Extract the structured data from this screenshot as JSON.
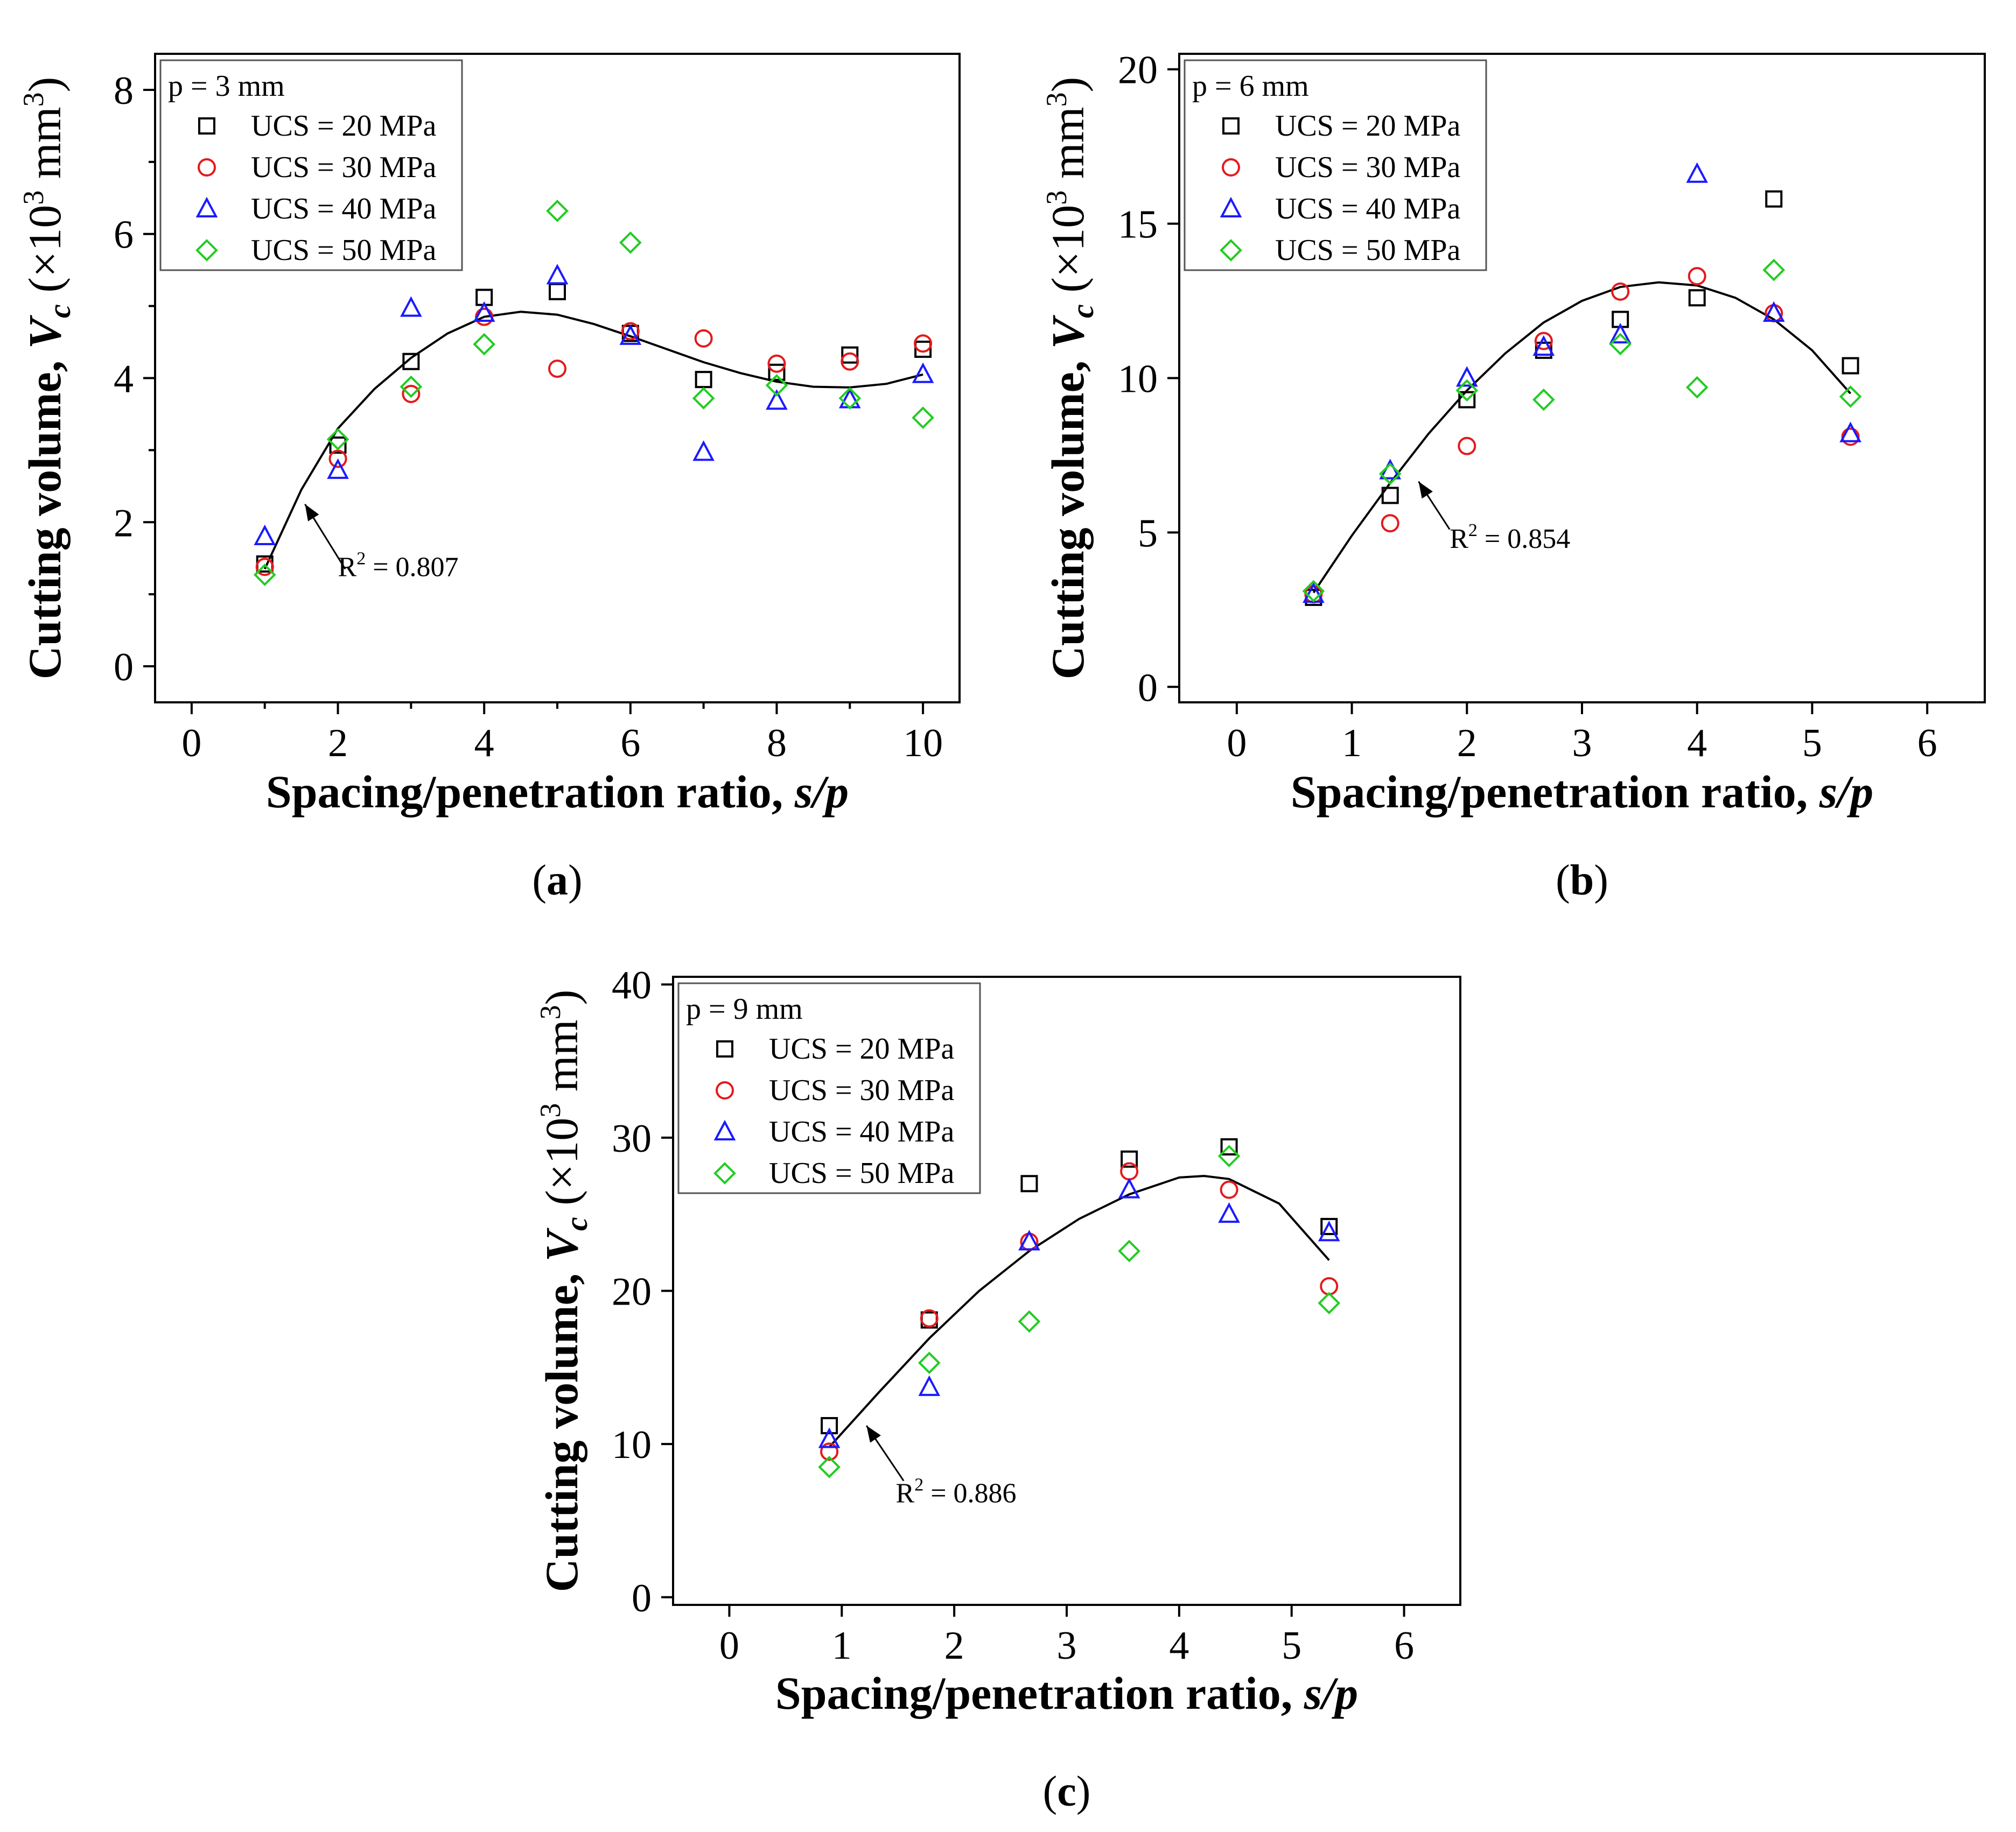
{
  "figure": {
    "subpanel_labels": [
      "(a)",
      "(b)",
      "(c)"
    ]
  },
  "colors": {
    "ucs20": "#000000",
    "ucs30": "#e41a1c",
    "ucs40": "#1a1aff",
    "ucs50": "#22cc22",
    "fit": "#000000",
    "axis": "#000000"
  },
  "chart_data": [
    {
      "id": "a",
      "type": "scatter",
      "panel_label": "a",
      "legend_title": "p = 3 mm",
      "xlabel": "Spacing/penetration ratio, ",
      "xlabel_italic": "s/p",
      "ylabel_text": "Cutting volume, ",
      "ylabel_var": "V",
      "ylabel_sub": "c",
      "ylabel_unit_pre": " (×10",
      "ylabel_exp": "3",
      "ylabel_unit_mid": " mm",
      "ylabel_unit_end": ")",
      "xlim": [
        -0.5,
        10.5
      ],
      "ylim": [
        -0.5,
        8.5
      ],
      "xticks": [
        0,
        2,
        4,
        6,
        8,
        10
      ],
      "xminor": [
        1,
        3,
        5,
        7,
        9
      ],
      "yticks": [
        0,
        2,
        4,
        6,
        8
      ],
      "yminor": [
        1,
        3,
        5,
        7
      ],
      "fit": {
        "r2_label": "R",
        "r2_exp": "2",
        "r2_value": " = 0.807",
        "points": [
          [
            1,
            1.35
          ],
          [
            1.5,
            2.45
          ],
          [
            2,
            3.3
          ],
          [
            2.5,
            3.85
          ],
          [
            3,
            4.28
          ],
          [
            3.5,
            4.62
          ],
          [
            4,
            4.85
          ],
          [
            4.5,
            4.92
          ],
          [
            5,
            4.88
          ],
          [
            5.5,
            4.75
          ],
          [
            6,
            4.58
          ],
          [
            6.5,
            4.4
          ],
          [
            7,
            4.22
          ],
          [
            7.5,
            4.07
          ],
          [
            8,
            3.95
          ],
          [
            8.5,
            3.88
          ],
          [
            9,
            3.87
          ],
          [
            9.5,
            3.92
          ],
          [
            10,
            4.05
          ]
        ],
        "arrow_from": [
          2.1,
          1.35
        ],
        "arrow_to": [
          1.55,
          2.25
        ],
        "label_at": [
          2.0,
          1.25
        ]
      },
      "series": [
        {
          "name": "UCS = 20 MPa",
          "marker": "square",
          "color": "#000000",
          "x": [
            1,
            2,
            3,
            4,
            5,
            6,
            7,
            8,
            9,
            10
          ],
          "y": [
            1.42,
            3.07,
            4.23,
            5.12,
            5.2,
            4.62,
            3.98,
            4.08,
            4.32,
            4.4
          ]
        },
        {
          "name": "UCS = 30 MPa",
          "marker": "circle",
          "color": "#e41a1c",
          "x": [
            1,
            2,
            3,
            4,
            5,
            6,
            7,
            8,
            9,
            10
          ],
          "y": [
            1.38,
            2.88,
            3.78,
            4.85,
            4.13,
            4.65,
            4.55,
            4.2,
            4.23,
            4.48
          ]
        },
        {
          "name": "UCS = 40 MPa",
          "marker": "triangle",
          "color": "#1a1aff",
          "x": [
            1,
            2,
            3,
            4,
            5,
            6,
            7,
            8,
            9,
            10
          ],
          "y": [
            1.8,
            2.72,
            4.97,
            4.9,
            5.42,
            4.58,
            2.97,
            3.68,
            3.7,
            4.05
          ]
        },
        {
          "name": "UCS = 50 MPa",
          "marker": "diamond",
          "color": "#22cc22",
          "x": [
            1,
            2,
            3,
            4,
            5,
            6,
            7,
            8,
            9,
            10
          ],
          "y": [
            1.27,
            3.15,
            3.88,
            4.47,
            6.32,
            5.88,
            3.72,
            3.9,
            3.72,
            3.45
          ]
        }
      ]
    },
    {
      "id": "b",
      "type": "scatter",
      "panel_label": "b",
      "legend_title": "p = 6 mm",
      "xlabel": "Spacing/penetration ratio, ",
      "xlabel_italic": "s/p",
      "ylabel_text": "Cutting volume, ",
      "ylabel_var": "V",
      "ylabel_sub": "c",
      "ylabel_unit_pre": " (×10",
      "ylabel_exp": "3",
      "ylabel_unit_mid": " mm",
      "ylabel_unit_end": ")",
      "xlim": [
        -0.5,
        6.5
      ],
      "ylim": [
        -0.5,
        20.5
      ],
      "xticks": [
        0,
        1,
        2,
        3,
        4,
        5,
        6
      ],
      "xminor": [],
      "yticks": [
        0,
        5,
        10,
        15,
        20
      ],
      "yminor": [],
      "fit": {
        "r2_label": "R",
        "r2_exp": "2",
        "r2_value": " = 0.854",
        "points": [
          [
            0.667,
            3.05
          ],
          [
            1.0,
            4.9
          ],
          [
            1.333,
            6.6
          ],
          [
            1.667,
            8.2
          ],
          [
            2.0,
            9.6
          ],
          [
            2.333,
            10.8
          ],
          [
            2.667,
            11.8
          ],
          [
            3.0,
            12.5
          ],
          [
            3.333,
            12.95
          ],
          [
            3.667,
            13.1
          ],
          [
            4.0,
            13.0
          ],
          [
            4.333,
            12.6
          ],
          [
            4.667,
            11.9
          ],
          [
            5.0,
            10.9
          ],
          [
            5.333,
            9.5
          ]
        ],
        "arrow_from": [
          1.85,
          5.1
        ],
        "arrow_to": [
          1.58,
          6.65
        ],
        "label_at": [
          1.85,
          4.5
        ]
      },
      "series": [
        {
          "name": "UCS = 20 MPa",
          "marker": "square",
          "color": "#000000",
          "x": [
            0.667,
            1.333,
            2.0,
            2.667,
            3.333,
            4.0,
            4.667,
            5.333
          ],
          "y": [
            2.9,
            6.2,
            9.3,
            10.9,
            11.9,
            12.6,
            15.8,
            10.4
          ]
        },
        {
          "name": "UCS = 30 MPa",
          "marker": "circle",
          "color": "#e41a1c",
          "x": [
            0.667,
            1.333,
            2.0,
            2.667,
            3.333,
            4.0,
            4.667,
            5.333
          ],
          "y": [
            3.0,
            5.3,
            7.8,
            11.2,
            12.8,
            13.3,
            12.1,
            8.1
          ]
        },
        {
          "name": "UCS = 40 MPa",
          "marker": "triangle",
          "color": "#1a1aff",
          "x": [
            0.667,
            1.333,
            2.0,
            2.667,
            3.333,
            4.0,
            4.667,
            5.333
          ],
          "y": [
            3.0,
            7.0,
            10.0,
            11.0,
            11.4,
            16.6,
            12.1,
            8.2
          ]
        },
        {
          "name": "UCS = 50 MPa",
          "marker": "diamond",
          "color": "#22cc22",
          "x": [
            0.667,
            1.333,
            2.0,
            2.667,
            3.333,
            4.0,
            4.667,
            5.333
          ],
          "y": [
            3.1,
            6.9,
            9.6,
            9.3,
            11.1,
            9.7,
            13.5,
            9.4
          ]
        }
      ]
    },
    {
      "id": "c",
      "type": "scatter",
      "panel_label": "c",
      "legend_title": "p = 9 mm",
      "xlabel": "Spacing/penetration ratio, ",
      "xlabel_italic": "s/p",
      "ylabel_text": "Cutting volume, ",
      "ylabel_var": "V",
      "ylabel_sub": "c",
      "ylabel_unit_pre": " (×10",
      "ylabel_exp": "3",
      "ylabel_unit_mid": " mm",
      "ylabel_unit_end": ")",
      "xlim": [
        -0.5,
        6.5
      ],
      "ylim": [
        -0.5,
        40.5
      ],
      "xticks": [
        0,
        1,
        2,
        3,
        4,
        5,
        6
      ],
      "xminor": [],
      "yticks": [
        0,
        10,
        20,
        30,
        40
      ],
      "yminor": [],
      "fit": {
        "r2_label": "R",
        "r2_exp": "2",
        "r2_value": " = 0.886",
        "points": [
          [
            0.889,
            9.8
          ],
          [
            1.333,
            13.4
          ],
          [
            1.778,
            16.9
          ],
          [
            2.222,
            20.0
          ],
          [
            2.667,
            22.6
          ],
          [
            3.111,
            24.7
          ],
          [
            3.556,
            26.3
          ],
          [
            4.0,
            27.4
          ],
          [
            4.222,
            27.5
          ],
          [
            4.444,
            27.3
          ],
          [
            4.889,
            25.7
          ],
          [
            5.333,
            22.0
          ]
        ],
        "arrow_from": [
          1.55,
          7.6
        ],
        "arrow_to": [
          1.22,
          11.2
        ],
        "label_at": [
          1.48,
          6.2
        ]
      },
      "series": [
        {
          "name": "UCS = 20 MPa",
          "marker": "square",
          "color": "#000000",
          "x": [
            0.889,
            1.778,
            2.667,
            3.556,
            4.444,
            5.333
          ],
          "y": [
            11.2,
            18.1,
            27.0,
            28.6,
            29.4,
            24.2
          ]
        },
        {
          "name": "UCS = 30 MPa",
          "marker": "circle",
          "color": "#e41a1c",
          "x": [
            0.889,
            1.778,
            2.667,
            3.556,
            4.444,
            5.333
          ],
          "y": [
            9.5,
            18.2,
            23.2,
            27.8,
            26.6,
            20.3
          ]
        },
        {
          "name": "UCS = 40 MPa",
          "marker": "triangle",
          "color": "#1a1aff",
          "x": [
            0.889,
            1.778,
            2.667,
            3.556,
            4.444,
            5.333
          ],
          "y": [
            10.3,
            13.7,
            23.2,
            26.6,
            25.0,
            23.8
          ]
        },
        {
          "name": "UCS = 50 MPa",
          "marker": "diamond",
          "color": "#22cc22",
          "x": [
            0.889,
            1.778,
            2.667,
            3.556,
            4.444,
            5.333
          ],
          "y": [
            8.5,
            15.3,
            18.0,
            22.6,
            28.8,
            19.2
          ]
        }
      ]
    }
  ]
}
